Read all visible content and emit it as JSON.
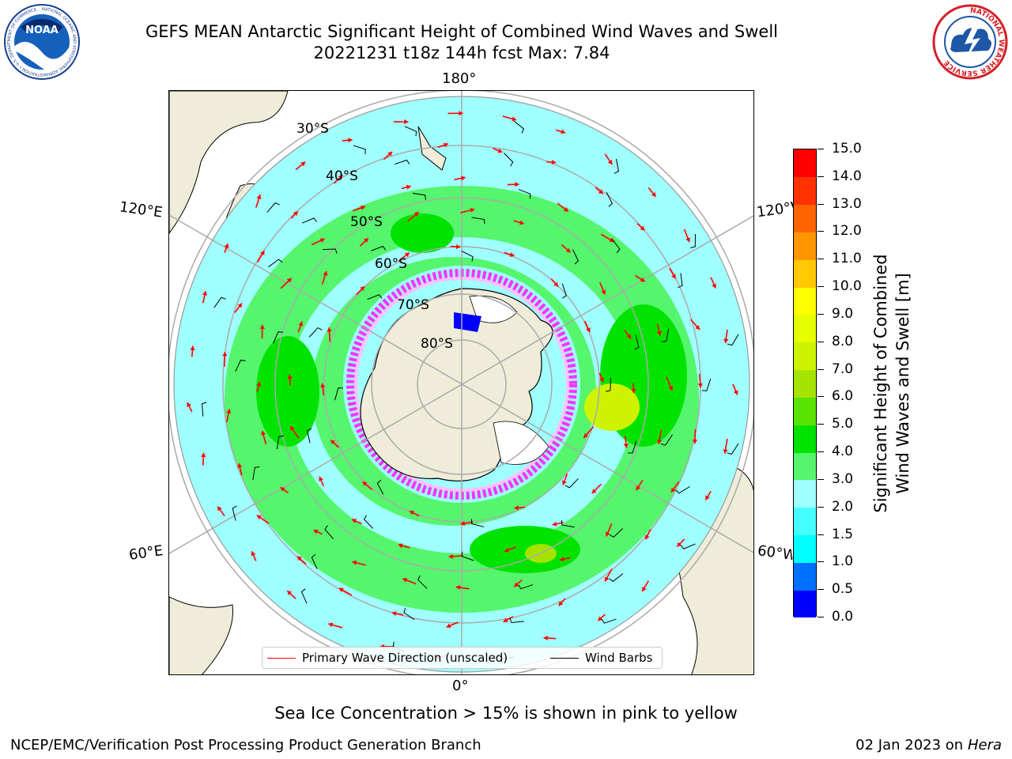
{
  "title": {
    "line1": "GEFS MEAN Antarctic Significant Height of Combined Wind Waves and Swell",
    "line2": "20221231 t18z 144h fcst   Max: 7.84"
  },
  "logos": {
    "noaa": {
      "text": "NOAA",
      "ring_text": "NATIONAL OCEANIC AND ATMOSPHERIC ADMINISTRATION • U.S. DEPARTMENT OF COMMERCE"
    },
    "nws": {
      "ring_text": "NATIONAL WEATHER SERVICE"
    }
  },
  "map": {
    "projection": "south-polar-stereographic",
    "lon_labels": {
      "top": "180°",
      "bottom": "0°",
      "upper_left": "120°E",
      "upper_right": "120°W",
      "lower_left": "60°E",
      "lower_right": "60°W"
    },
    "lat_labels": [
      "30°S",
      "40°S",
      "50°S",
      "60°S",
      "70°S",
      "80°S"
    ],
    "colors": {
      "land": "#efedd9",
      "ocean_ring": "#a0ffff",
      "green": "#55f56d",
      "ice": "#ff33ff"
    }
  },
  "legend": {
    "primary_wave": "Primary Wave Direction (unscaled)",
    "wind_barbs": "Wind Barbs",
    "colors": {
      "primary_wave": "#ff0000",
      "wind_barbs": "#000000"
    }
  },
  "colorbar": {
    "title_line1": "Significant Height of Combined",
    "title_line2": "Wind Waves and Swell [m]",
    "ticks": [
      "0.0",
      "0.5",
      "1.0",
      "1.5",
      "2.0",
      "3.0",
      "4.0",
      "5.0",
      "6.0",
      "7.0",
      "8.0",
      "9.0",
      "10.0",
      "11.0",
      "12.0",
      "13.0",
      "14.0",
      "15.0"
    ],
    "colors": [
      "#0000ff",
      "#0070ff",
      "#00ffff",
      "#45ffff",
      "#a0ffff",
      "#55f56d",
      "#00e300",
      "#5be300",
      "#a5e300",
      "#cef300",
      "#e6ff00",
      "#ffff00",
      "#ffc800",
      "#ff9600",
      "#ff6400",
      "#ff3200",
      "#ff0000"
    ]
  },
  "caption": "Sea Ice Concentration > 15% is shown in pink to yellow",
  "footer": {
    "left": "NCEP/EMC/Verification Post Processing Product Generation Branch",
    "date": "02 Jan 2023 on ",
    "machine": "Hera"
  }
}
